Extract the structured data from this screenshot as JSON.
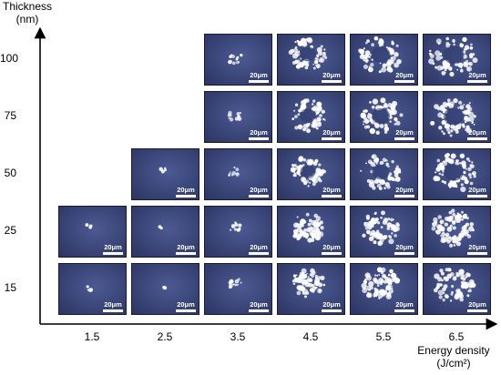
{
  "y_axis": {
    "label_line1": "Thickness",
    "label_line2": "(nm)"
  },
  "x_axis": {
    "label_line1": "Energy density",
    "label_line2": "(J/cm²)"
  },
  "thickness_levels": [
    "100",
    "75",
    "50",
    "25",
    "15"
  ],
  "energy_levels": [
    "1.5",
    "2.5",
    "3.5",
    "4.5",
    "5.5",
    "6.5"
  ],
  "scale_bar_label": "20μm",
  "colors": {
    "micrograph_background": "#3a4678",
    "damage": "#ffffff",
    "axis": "#000000"
  },
  "grid": [
    {
      "thickness": "100",
      "energies_imaged": [
        "3.5",
        "4.5",
        "5.5",
        "6.5"
      ]
    },
    {
      "thickness": "75",
      "energies_imaged": [
        "3.5",
        "4.5",
        "5.5",
        "6.5"
      ]
    },
    {
      "thickness": "50",
      "energies_imaged": [
        "2.5",
        "3.5",
        "4.5",
        "5.5",
        "6.5"
      ]
    },
    {
      "thickness": "25",
      "energies_imaged": [
        "1.5",
        "2.5",
        "3.5",
        "4.5",
        "5.5",
        "6.5"
      ]
    },
    {
      "thickness": "15",
      "energies_imaged": [
        "1.5",
        "2.5",
        "3.5",
        "4.5",
        "5.5",
        "6.5"
      ]
    }
  ]
}
